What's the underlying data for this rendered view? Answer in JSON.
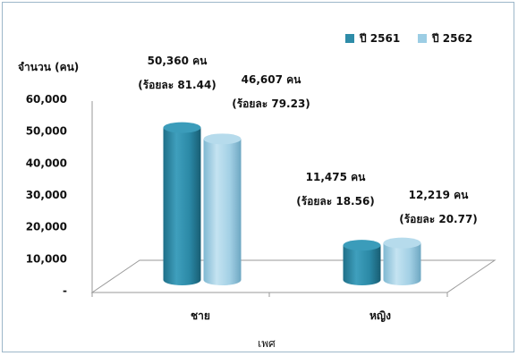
{
  "chart_data": {
    "type": "bar",
    "xlabel": "เพศ",
    "ylabel": "จำนวน (คน)",
    "ylim": [
      0,
      60000
    ],
    "yticks": [
      "-",
      "10,000",
      "20,000",
      "30,000",
      "40,000",
      "50,000",
      "60,000"
    ],
    "categories": [
      "ชาย",
      "หญิง"
    ],
    "legend_position": "top-right",
    "grid": false,
    "series": [
      {
        "name": "ปี 2561",
        "color": "#2e8ca8",
        "values": [
          50360,
          11475
        ],
        "labels": [
          {
            "count": "50,360 คน",
            "percent": "(ร้อยละ 81.44)"
          },
          {
            "count": "11,475  คน",
            "percent": "(ร้อยละ 18.56)"
          }
        ]
      },
      {
        "name": "ปี 2562",
        "color": "#9ccde4",
        "values": [
          46607,
          12219
        ],
        "labels": [
          {
            "count": "46,607 คน",
            "percent": "(ร้อยละ 79.23)"
          },
          {
            "count": "12,219 คน",
            "percent": "(ร้อยละ 20.77)"
          }
        ]
      }
    ]
  }
}
